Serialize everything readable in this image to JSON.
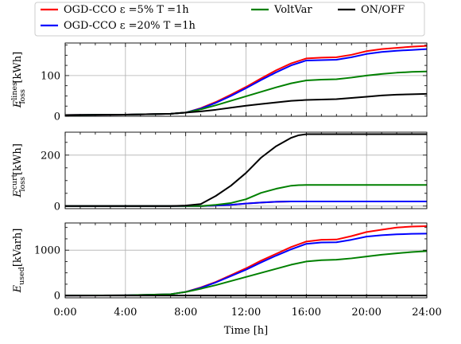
{
  "chart_data": {
    "type": "line",
    "layout": "three stacked panels with shared x-axis and shared legend at top",
    "xlabel": "Time [h]",
    "x_ticks": [
      "0:00",
      "4:00",
      "8:00",
      "12:00",
      "16:00",
      "20:00",
      "24:00"
    ],
    "xlim": [
      0,
      24
    ],
    "grid": true,
    "legend": {
      "placement": "top",
      "entries": [
        {
          "label": "OGD-CCO ε =5% T =1h",
          "color": "#ff0000"
        },
        {
          "label": "VoltVar",
          "color": "#008000"
        },
        {
          "label": "ON/OFF",
          "color": "#000000"
        },
        {
          "label": "OGD-CCO ε =20% T =1h",
          "color": "#0000ff"
        }
      ]
    },
    "panels": [
      {
        "ylabel_main": "E",
        "ylabel_sup": "lines",
        "ylabel_sub": "loss",
        "ylabel_unit": "[kWh]",
        "ylim": [
          0,
          180
        ],
        "y_ticks": [
          0,
          100
        ],
        "x": [
          0,
          4,
          7,
          8,
          9,
          10,
          11,
          12,
          13,
          14,
          15,
          16,
          17,
          18,
          19,
          20,
          21,
          22,
          23,
          24
        ],
        "series": [
          {
            "name": "OGD-CCO ε =5% T =1h",
            "color": "#ff0000",
            "values": [
              3,
              4,
              6,
              9,
              20,
              35,
              53,
              72,
              93,
              113,
              130,
              142,
              144,
              145,
              151,
              160,
              165,
              168,
              171,
              173
            ]
          },
          {
            "name": "OGD-CCO ε =20% T =1h",
            "color": "#0000ff",
            "values": [
              3,
              4,
              6,
              9,
              19,
              33,
              50,
              69,
              89,
              108,
              125,
              137,
              138,
              139,
              145,
              153,
              158,
              161,
              163,
              165
            ]
          },
          {
            "name": "VoltVar",
            "color": "#008000",
            "values": [
              3,
              4,
              6,
              9,
              17,
              27,
              38,
              49,
              60,
              71,
              81,
              88,
              90,
              91,
              95,
              100,
              104,
              107,
              109,
              110
            ]
          },
          {
            "name": "ON/OFF",
            "color": "#000000",
            "values": [
              3,
              4,
              6,
              9,
              12,
              16,
              21,
              26,
              30,
              34,
              38,
              40,
              41,
              42,
              45,
              48,
              51,
              53,
              54,
              55
            ]
          }
        ]
      },
      {
        "ylabel_main": "E",
        "ylabel_sup": "curt",
        "ylabel_sub": "loss",
        "ylabel_unit": "[kWh]",
        "ylim": [
          -10,
          290
        ],
        "y_ticks": [
          0,
          200
        ],
        "x": [
          0,
          4,
          7,
          8,
          9,
          10,
          11,
          12,
          13,
          14,
          15,
          15.5,
          16,
          17,
          18,
          20,
          22,
          24
        ],
        "series": [
          {
            "name": "OGD-CCO ε =5% T =1h",
            "color": "#ff0000",
            "values": [
              0,
              0,
              0,
              0,
              0,
              2,
              5,
              10,
              14,
              17,
              18,
              18,
              18,
              18,
              18,
              18,
              18,
              18
            ]
          },
          {
            "name": "OGD-CCO ε =20% T =1h",
            "color": "#0000ff",
            "values": [
              0,
              0,
              0,
              0,
              0,
              2,
              5,
              10,
              14,
              17,
              18,
              18,
              18,
              18,
              18,
              18,
              18,
              18
            ]
          },
          {
            "name": "VoltVar",
            "color": "#008000",
            "values": [
              0,
              0,
              0,
              0,
              0,
              5,
              12,
              27,
              52,
              68,
              80,
              82,
              83,
              83,
              83,
              83,
              83,
              83
            ]
          },
          {
            "name": "ON/OFF",
            "color": "#000000",
            "values": [
              0,
              0,
              0,
              2,
              8,
              40,
              80,
              130,
              190,
              235,
              268,
              278,
              282,
              282,
              282,
              282,
              282,
              282
            ]
          }
        ]
      },
      {
        "ylabel_main": "E",
        "ylabel_sup": "",
        "ylabel_sub": "used",
        "ylabel_unit": "[kVarh]",
        "ylim": [
          -50,
          1600
        ],
        "y_ticks": [
          0,
          1000
        ],
        "x": [
          0,
          4,
          7,
          8,
          9,
          10,
          11,
          12,
          13,
          14,
          15,
          16,
          17,
          18,
          19,
          20,
          21,
          22,
          23,
          24
        ],
        "series": [
          {
            "name": "OGD-CCO ε =5% T =1h",
            "color": "#ff0000",
            "values": [
              0,
              5,
              30,
              80,
              180,
              300,
              450,
              600,
              770,
              920,
              1070,
              1190,
              1230,
              1235,
              1310,
              1400,
              1450,
              1500,
              1520,
              1530
            ]
          },
          {
            "name": "OGD-CCO ε =20% T =1h",
            "color": "#0000ff",
            "values": [
              0,
              5,
              30,
              80,
              170,
              290,
              430,
              570,
              730,
              880,
              1020,
              1140,
              1170,
              1175,
              1230,
              1300,
              1330,
              1350,
              1360,
              1365
            ]
          },
          {
            "name": "VoltVar",
            "color": "#008000",
            "values": [
              0,
              5,
              30,
              80,
              150,
              230,
              320,
              410,
              500,
              590,
              680,
              750,
              780,
              790,
              820,
              860,
              900,
              930,
              960,
              980
            ]
          },
          {
            "name": "ON/OFF",
            "color": "#000000",
            "values": [
              0,
              0,
              0,
              0,
              0,
              0,
              0,
              0,
              0,
              0,
              0,
              0,
              0,
              0,
              0,
              0,
              0,
              0,
              0,
              0
            ]
          }
        ]
      }
    ]
  }
}
